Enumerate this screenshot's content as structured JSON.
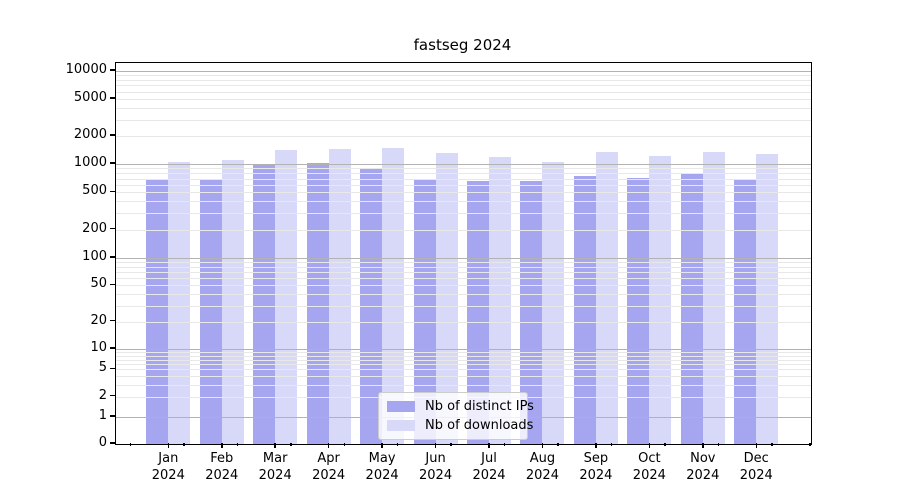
{
  "chart_data": {
    "type": "bar",
    "title": "fastseg 2024",
    "categories": [
      "Jan 2024",
      "Feb 2024",
      "Mar 2024",
      "Apr 2024",
      "May 2024",
      "Jun 2024",
      "Jul 2024",
      "Aug 2024",
      "Sep 2024",
      "Oct 2024",
      "Nov 2024",
      "Dec 2024"
    ],
    "series": [
      {
        "name": "Nb of distinct IPs",
        "color": "#a5a5f0",
        "values": [
          680,
          680,
          1000,
          1015,
          885,
          670,
          660,
          665,
          745,
          715,
          775,
          690
        ]
      },
      {
        "name": "Nb of downloads",
        "color": "#d8d8f9",
        "values": [
          1040,
          1110,
          1400,
          1440,
          1480,
          1315,
          1200,
          1060,
          1330,
          1215,
          1330,
          1290
        ]
      }
    ],
    "yscale": "symlog",
    "ylim": [
      0,
      10000
    ],
    "ytick_labels": [
      "10000",
      "5000",
      "2000",
      "1000",
      "500",
      "200",
      "100",
      "50",
      "20",
      "10",
      "5",
      "2",
      "1",
      "0"
    ],
    "grid": true,
    "legend_position": "lower center"
  },
  "colors": {
    "grid_major": "#b2b2b2",
    "grid_minor": "#e8e8e8",
    "axis": "#000000",
    "legend_border": "#cccccc",
    "background": "#ffffff"
  }
}
